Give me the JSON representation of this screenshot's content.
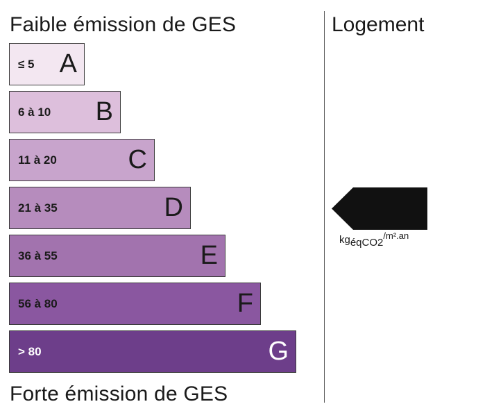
{
  "header": {
    "top_label": "Faible émission de GES",
    "bottom_label": "Forte émission de GES",
    "column_title": "Logement"
  },
  "classes": [
    {
      "range": "≤ 5",
      "letter": "A",
      "color": "#f3e7f1",
      "text_color": "#1a1a1a"
    },
    {
      "range": "6 à 10",
      "letter": "B",
      "color": "#ddbfdc",
      "text_color": "#1a1a1a"
    },
    {
      "range": "11 à 20",
      "letter": "C",
      "color": "#c8a4cc",
      "text_color": "#1a1a1a"
    },
    {
      "range": "21 à 35",
      "letter": "D",
      "color": "#b68cbd",
      "text_color": "#1a1a1a"
    },
    {
      "range": "36 à 55",
      "letter": "E",
      "color": "#a273ae",
      "text_color": "#1a1a1a"
    },
    {
      "range": "56 à 80",
      "letter": "F",
      "color": "#8a57a0",
      "text_color": "#1a1a1a"
    },
    {
      "range": "> 80",
      "letter": "G",
      "color": "#6d3e8a",
      "text_color": "#ffffff"
    }
  ],
  "indicator": {
    "value": "",
    "class_letter": "D",
    "color": "#111111"
  },
  "unit": {
    "base": "kg",
    "subscript": "éqCO2",
    "superscript": "/m².an"
  }
}
